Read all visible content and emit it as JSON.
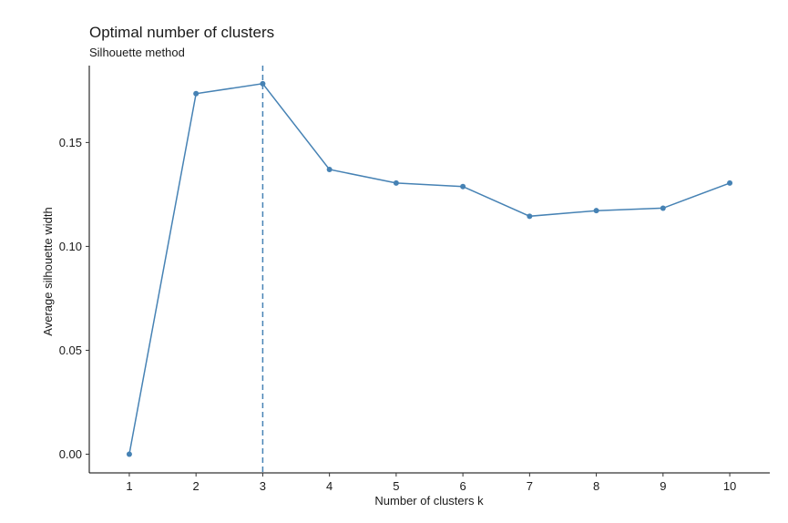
{
  "chart_data": {
    "type": "line",
    "title": "Optimal number of clusters",
    "subtitle": "Silhouette method",
    "xlabel": "Number of clusters k",
    "ylabel": "Average silhouette width",
    "x": [
      1,
      2,
      3,
      4,
      5,
      6,
      7,
      8,
      9,
      10
    ],
    "x_tick_labels": [
      "1",
      "2",
      "3",
      "4",
      "5",
      "6",
      "7",
      "8",
      "9",
      "10"
    ],
    "y": [
      0.0,
      0.1735,
      0.1783,
      0.137,
      0.1305,
      0.1288,
      0.1145,
      0.1172,
      0.1184,
      0.1305
    ],
    "y_ticks": [
      0.0,
      0.05,
      0.1,
      0.15
    ],
    "y_tick_labels": [
      "0.00",
      "0.05",
      "0.10",
      "0.15"
    ],
    "xlim": [
      0.4,
      10.6
    ],
    "ylim": [
      -0.009,
      0.187
    ],
    "optimal_k": 3,
    "grid": false,
    "line_color": "#4682b4",
    "vline_color": "#4682b4"
  }
}
